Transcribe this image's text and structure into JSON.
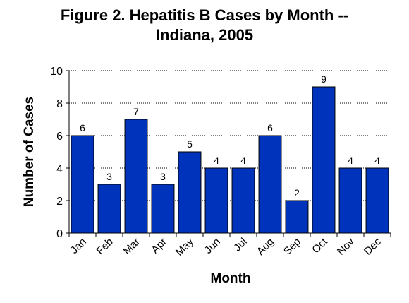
{
  "chart_data": {
    "type": "bar",
    "title_line1": "Figure 2.  Hepatitis B Cases by Month --",
    "title_line2": "Indiana, 2005",
    "xlabel": "Month",
    "ylabel": "Number of Cases",
    "categories": [
      "Jan",
      "Feb",
      "Mar",
      "Apr",
      "May",
      "Jun",
      "Jul",
      "Aug",
      "Sep",
      "Oct",
      "Nov",
      "Dec"
    ],
    "values": [
      6,
      3,
      7,
      3,
      5,
      4,
      4,
      6,
      2,
      9,
      4,
      4
    ],
    "ylim": [
      0,
      10
    ],
    "yticks": [
      0,
      2,
      4,
      6,
      8,
      10
    ],
    "ytick_labels": [
      "0",
      "2",
      "4",
      "6",
      "8",
      "10"
    ],
    "data_labels": [
      "6",
      "3",
      "7",
      "3",
      "5",
      "4",
      "4",
      "6",
      "2",
      "9",
      "4",
      "4"
    ],
    "grid": "horizontal-dotted",
    "legend": "none",
    "bar_color": "#0033BB"
  }
}
